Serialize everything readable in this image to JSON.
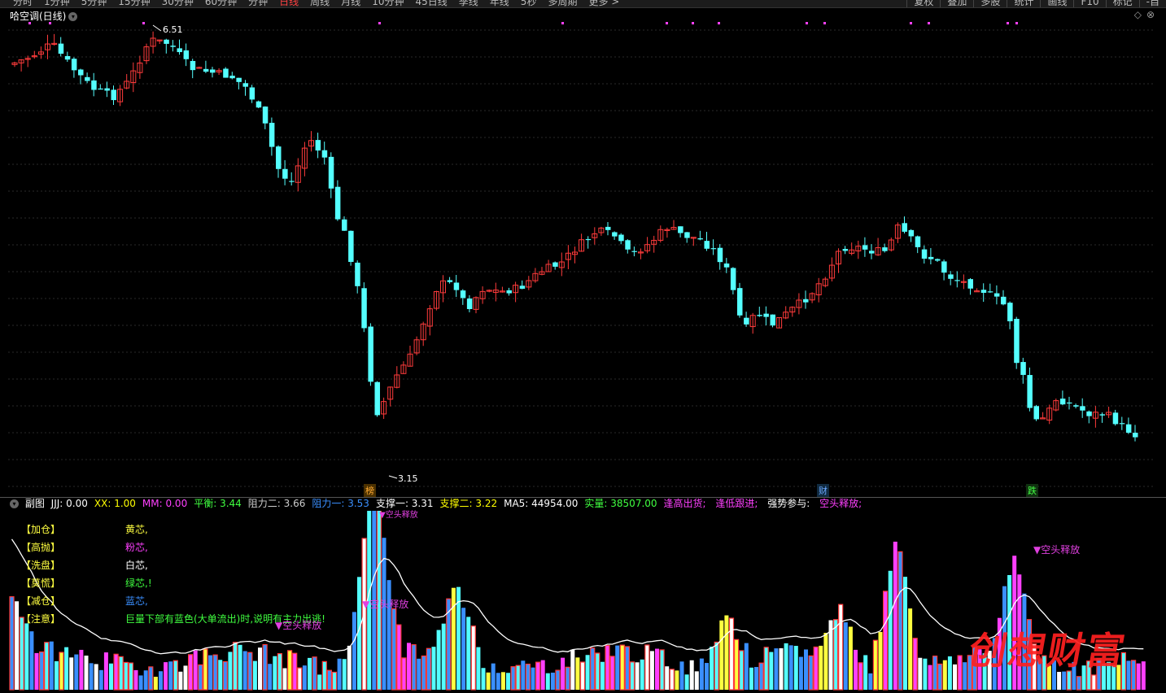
{
  "topbar": {
    "periods": [
      "分时",
      "1分钟",
      "5分钟",
      "15分钟",
      "30分钟",
      "60分钟",
      "分钟",
      "日线",
      "周线",
      "月线",
      "10分钟",
      "45日线",
      "季线",
      "年线",
      "5秒",
      "多周期",
      "更多 >"
    ],
    "active_period": "日线",
    "tools": [
      "复权",
      "叠加",
      "多股",
      "统计",
      "画线",
      "F10",
      "标记",
      "-自"
    ]
  },
  "main": {
    "title": "哈空调(日线)",
    "high_label": "6.51",
    "low_label": "3.15",
    "markers": [
      {
        "text": "榜",
        "color": "#ffaa33"
      },
      {
        "text": "财",
        "color": "#6aa8ff"
      },
      {
        "text": "跌",
        "color": "#44ff44"
      }
    ]
  },
  "sub": {
    "title": "副图",
    "indicators": [
      {
        "name": "JJJ: ",
        "value": "0.00",
        "color": "#ffffff"
      },
      {
        "name": "XX: ",
        "value": "1.00",
        "color": "#ffff00"
      },
      {
        "name": "MM: ",
        "value": "0.00",
        "color": "#ff40ff"
      },
      {
        "name": "平衡: ",
        "value": "3.44",
        "color": "#40ff40"
      },
      {
        "name": "阻力二: ",
        "value": "3.66",
        "color": "#cccccc"
      },
      {
        "name": "阻力一: ",
        "value": "3.53",
        "color": "#3a8fff"
      },
      {
        "name": "支撑一: ",
        "value": "3.31",
        "color": "#ffffff"
      },
      {
        "name": "支撑二: ",
        "value": "3.22",
        "color": "#ffff00"
      },
      {
        "name": "MA5: ",
        "value": "44954.00",
        "color": "#ffffff"
      },
      {
        "name": "实量: ",
        "value": "38507.00",
        "color": "#40ff40"
      },
      {
        "name": "逢高出货; ",
        "value": "",
        "color": "#ff40ff"
      },
      {
        "name": "逢低跟进; ",
        "value": "",
        "color": "#ff40ff"
      },
      {
        "name": "强势参与: ",
        "value": "",
        "color": "#ffffff"
      },
      {
        "name": "空头释放; ",
        "value": "",
        "color": "#ff40ff"
      }
    ],
    "legend": [
      {
        "label": "【加仓】",
        "desc": "黄芯,",
        "color": "#ffff40"
      },
      {
        "label": "【高抛】",
        "desc": "粉芯,",
        "color": "#ff40ff"
      },
      {
        "label": "【洗盘】",
        "desc": "白芯,",
        "color": "#ffffff"
      },
      {
        "label": "【莫慌】",
        "desc": "绿芯,!",
        "color": "#40ff40"
      },
      {
        "label": "【减仓】",
        "desc": "蓝芯,",
        "color": "#3a8fff"
      },
      {
        "label": "【注意】",
        "desc": "巨量下部有蓝色(大单流出)时,说明有主力出逃!",
        "color": "#40ff40"
      }
    ],
    "signals": [
      "▼空头释放",
      "▼空头释放",
      "▼空头释放",
      "▼空头释放"
    ]
  },
  "watermark": "创想财富",
  "colors": {
    "up": "#ff3b3b",
    "down": "#54ffff",
    "grid": "#2a2a2a"
  }
}
